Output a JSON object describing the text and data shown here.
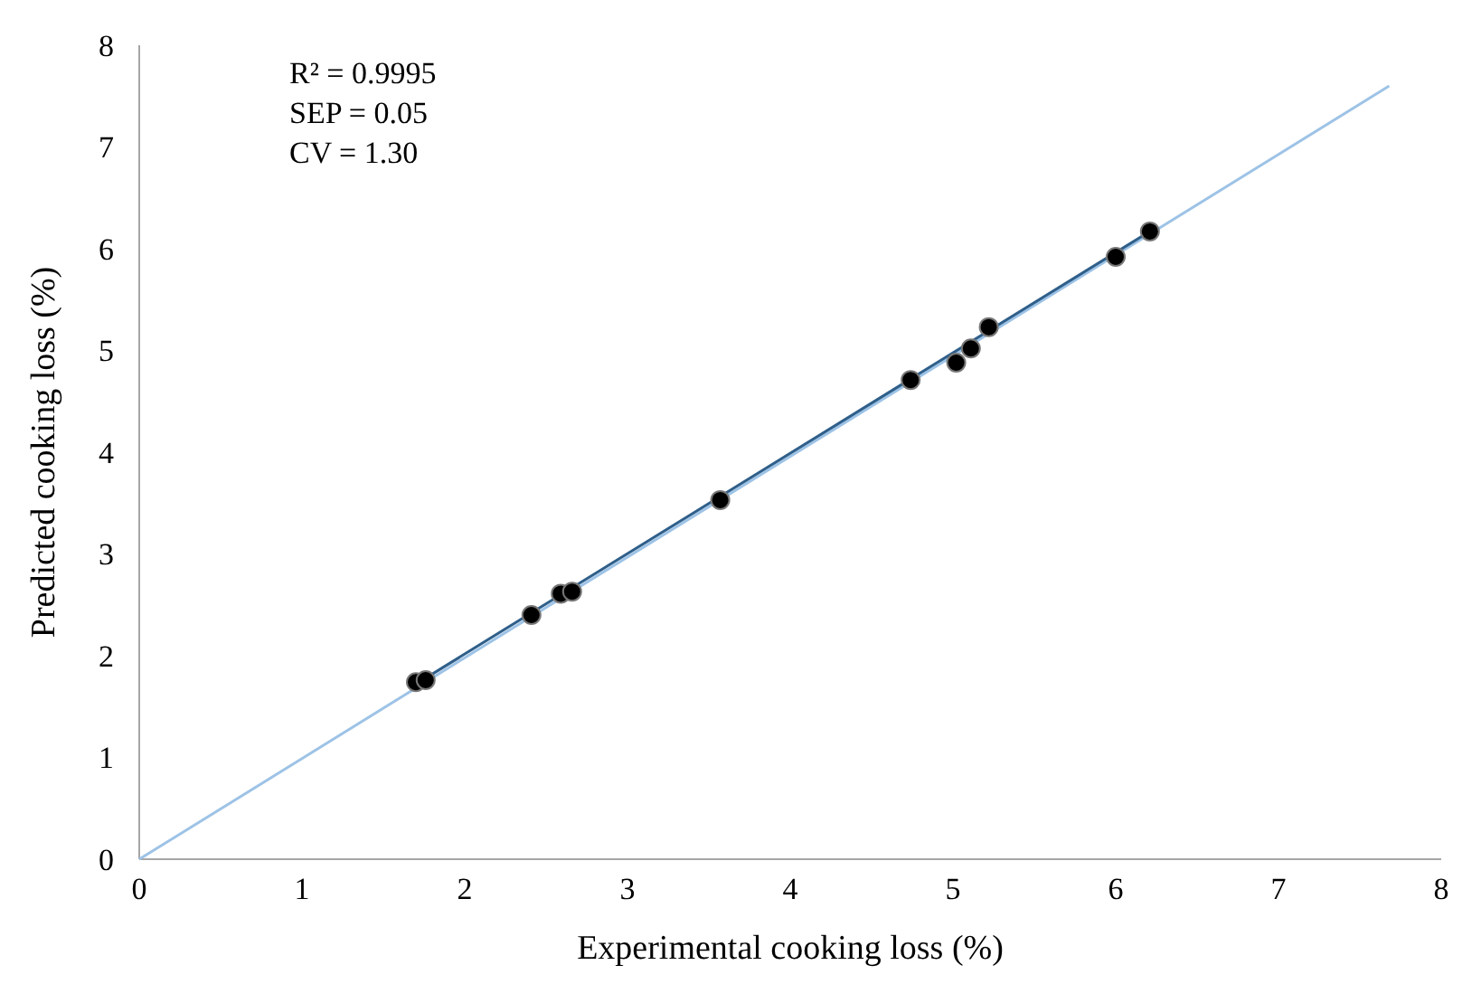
{
  "chart_data": {
    "type": "scatter",
    "xlabel": "Experimental cooking loss (%)",
    "ylabel": "Predicted cooking loss (%)",
    "annotations": [
      "R² = 0.9995",
      "SEP = 0.05",
      "CV = 1.30"
    ],
    "xlim": [
      0,
      8
    ],
    "ylim": [
      0,
      8
    ],
    "xticks": [
      0,
      1,
      2,
      3,
      4,
      5,
      6,
      7,
      8
    ],
    "yticks": [
      0,
      1,
      2,
      3,
      4,
      5,
      6,
      7,
      8
    ],
    "grid": false,
    "series": [
      {
        "type": "line",
        "color": "#9dc3e6",
        "x": [
          0,
          7.68
        ],
        "values": [
          0,
          7.6
        ]
      },
      {
        "type": "line",
        "color": "#2f5f8a",
        "x": [
          1.73,
          6.21
        ],
        "values": [
          1.75,
          6.17
        ]
      },
      {
        "marker": "circle",
        "color": "#000000",
        "x": [
          1.7,
          1.76,
          2.41,
          2.59,
          2.66,
          3.57,
          4.74,
          5.02,
          5.11,
          5.22,
          6.0,
          6.21
        ],
        "values": [
          1.74,
          1.76,
          2.4,
          2.61,
          2.63,
          3.53,
          4.71,
          4.88,
          5.02,
          5.23,
          5.92,
          6.17
        ]
      }
    ]
  }
}
